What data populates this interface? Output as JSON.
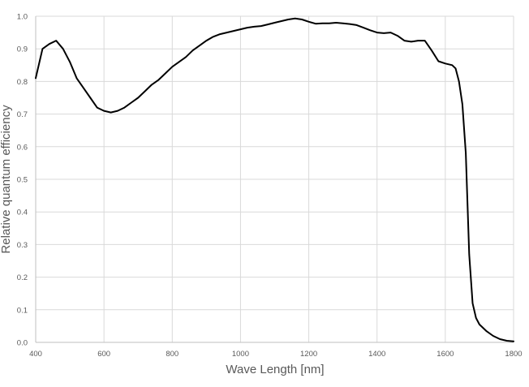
{
  "chart_data": {
    "type": "line",
    "title": "",
    "xlabel": "Wave Length [nm]",
    "ylabel": "Relative quantum efficiency",
    "xlim": [
      400,
      1800
    ],
    "ylim": [
      0,
      1.0
    ],
    "x_ticks": [
      400,
      600,
      800,
      1000,
      1200,
      1400,
      1600,
      1800
    ],
    "y_ticks": [
      "0.0",
      "0.1",
      "0.2",
      "0.3",
      "0.4",
      "0.5",
      "0.6",
      "0.7",
      "0.8",
      "0.9",
      "1.0"
    ],
    "grid": {
      "vertical": true,
      "horizontal": true
    },
    "legend": "none",
    "colors": {
      "line": "#000000",
      "grid": "#d9d9d9",
      "text": "#595959"
    },
    "series": [
      {
        "x": [
          400,
          420,
          440,
          460,
          480,
          500,
          520,
          540,
          560,
          580,
          600,
          620,
          640,
          660,
          680,
          700,
          720,
          740,
          760,
          780,
          800,
          820,
          840,
          860,
          880,
          900,
          920,
          940,
          960,
          980,
          1000,
          1020,
          1040,
          1060,
          1080,
          1100,
          1120,
          1140,
          1160,
          1180,
          1200,
          1220,
          1240,
          1260,
          1280,
          1300,
          1320,
          1340,
          1360,
          1380,
          1400,
          1420,
          1440,
          1460,
          1480,
          1500,
          1520,
          1540,
          1560,
          1580,
          1600,
          1620,
          1630,
          1640,
          1650,
          1660,
          1670,
          1680,
          1690,
          1700,
          1720,
          1740,
          1760,
          1780,
          1800
        ],
        "y": [
          0.81,
          0.9,
          0.915,
          0.925,
          0.9,
          0.86,
          0.81,
          0.78,
          0.75,
          0.72,
          0.71,
          0.705,
          0.71,
          0.72,
          0.735,
          0.75,
          0.77,
          0.79,
          0.805,
          0.825,
          0.845,
          0.86,
          0.875,
          0.895,
          0.91,
          0.925,
          0.937,
          0.945,
          0.95,
          0.955,
          0.96,
          0.965,
          0.968,
          0.97,
          0.975,
          0.98,
          0.985,
          0.99,
          0.993,
          0.99,
          0.983,
          0.977,
          0.978,
          0.978,
          0.98,
          0.978,
          0.976,
          0.973,
          0.965,
          0.957,
          0.95,
          0.948,
          0.95,
          0.94,
          0.925,
          0.922,
          0.925,
          0.925,
          0.895,
          0.862,
          0.855,
          0.85,
          0.84,
          0.8,
          0.73,
          0.58,
          0.27,
          0.12,
          0.075,
          0.055,
          0.035,
          0.02,
          0.01,
          0.005,
          0.003
        ]
      }
    ]
  }
}
